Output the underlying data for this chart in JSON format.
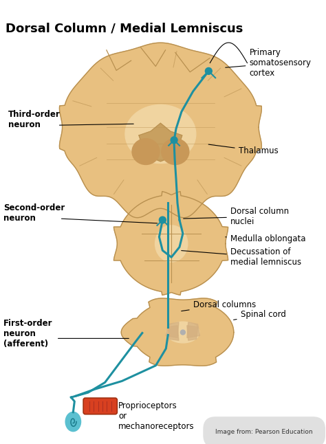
{
  "title": "Dorsal Column / Medial Lemniscus",
  "title_fontsize": 13,
  "bg_color": "#ffffff",
  "brain_color": "#e8c080",
  "brain_inner": "#f0d4a0",
  "brain_outline": "#b89050",
  "pathway_color": "#1e90a0",
  "pathway_lw": 2.2,
  "annotation_fontsize": 8.5,
  "bold_label_fontsize": 8.5,
  "credit_text": "Image from: Pearson Education",
  "credit_fontsize": 6.5,
  "labels": {
    "primary_somatosensory": "Primary\nsomatosensory\ncortex",
    "third_order": "Third-order\nneuron",
    "thalamus": "Thalamus",
    "second_order": "Second-order\nneuron",
    "dorsal_column_nuclei": "Dorsal column\nnuclei",
    "medulla_oblongata": "Medulla oblongata",
    "decussation": "Decussation of\nmedial lemniscus",
    "dorsal_columns": "Dorsal columns",
    "spinal_cord": "Spinal cord",
    "first_order": "First-order\nneuron\n(afferent)",
    "proprioceptors": "Proprioceptors\nor\nmechanoreceptors"
  }
}
